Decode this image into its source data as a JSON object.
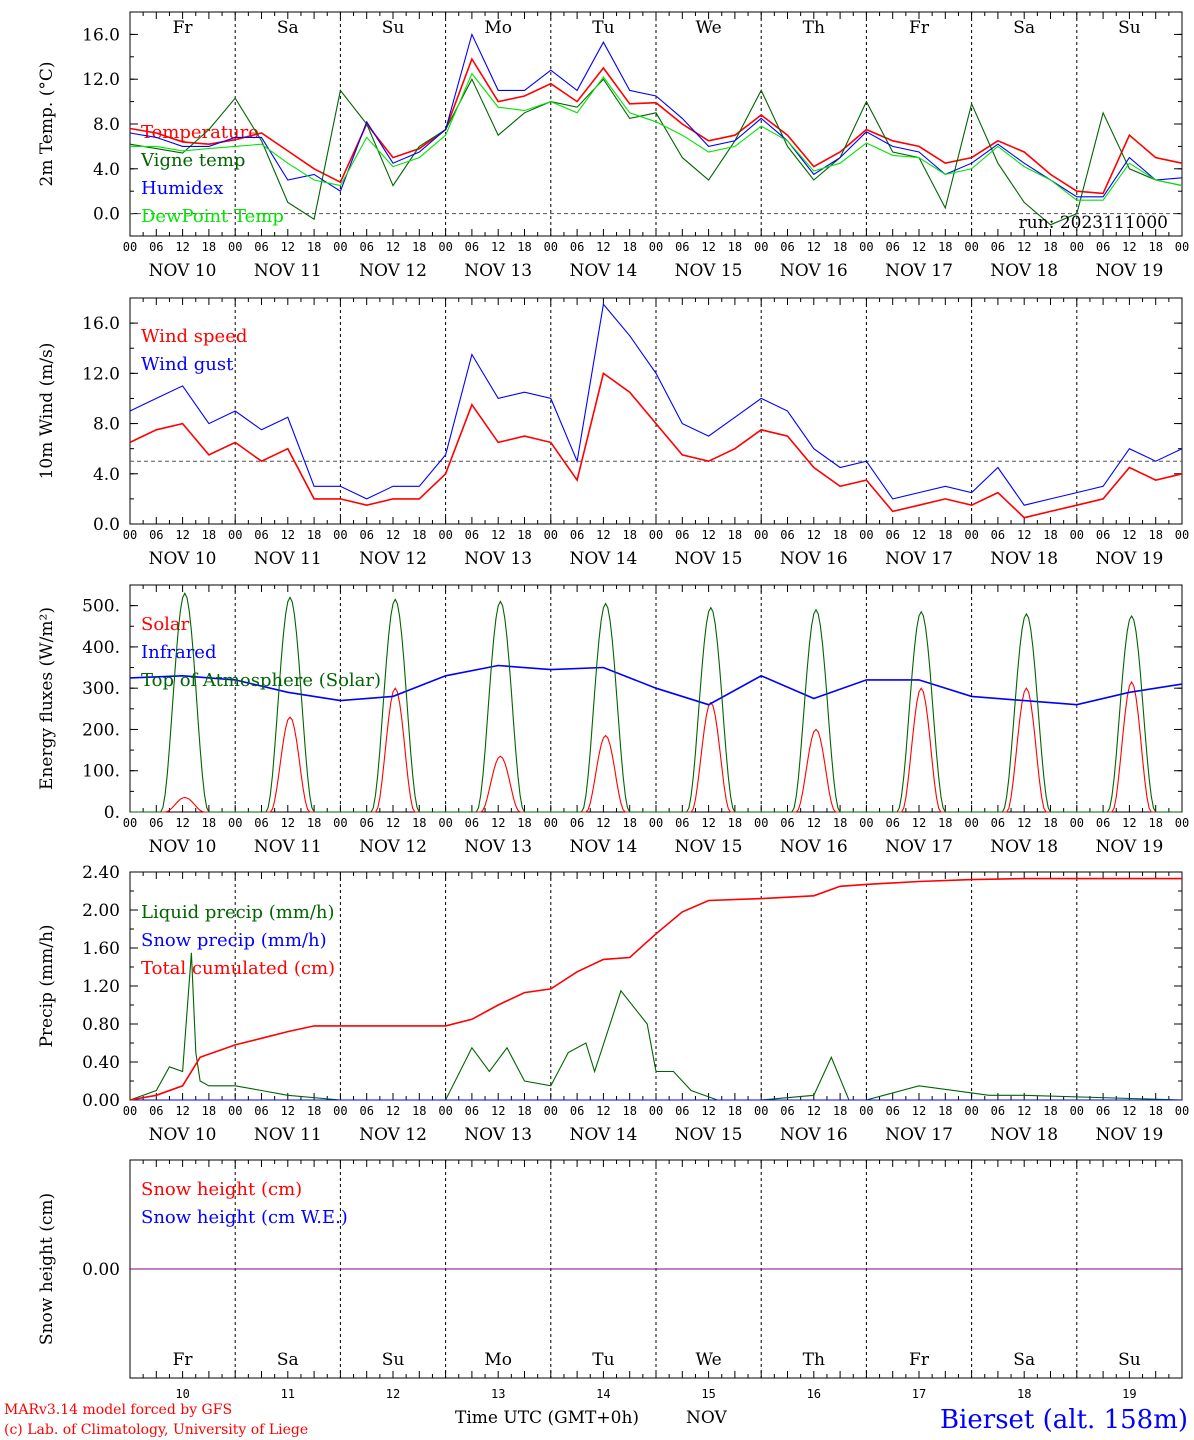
{
  "colors": {
    "red": "#ff0000",
    "green": "#006400",
    "lightgreen": "#00e600",
    "blue": "#0000ff",
    "purple": "#7f007f",
    "weekend": "#ff0000",
    "weekday": "#000000"
  },
  "days": [
    {
      "abbr": "Fr",
      "weekend": false,
      "date": "NOV 10",
      "num": "10"
    },
    {
      "abbr": "Sa",
      "weekend": true,
      "date": "NOV 11",
      "num": "11"
    },
    {
      "abbr": "Su",
      "weekend": true,
      "date": "NOV 12",
      "num": "12"
    },
    {
      "abbr": "Mo",
      "weekend": false,
      "date": "NOV 13",
      "num": "13"
    },
    {
      "abbr": "Tu",
      "weekend": false,
      "date": "NOV 14",
      "num": "14"
    },
    {
      "abbr": "We",
      "weekend": false,
      "date": "NOV 15",
      "num": "15"
    },
    {
      "abbr": "Th",
      "weekend": false,
      "date": "NOV 16",
      "num": "16"
    },
    {
      "abbr": "Fr",
      "weekend": false,
      "date": "NOV 17",
      "num": "17"
    },
    {
      "abbr": "Sa",
      "weekend": true,
      "date": "NOV 18",
      "num": "18"
    },
    {
      "abbr": "Su",
      "weekend": true,
      "date": "NOV 19",
      "num": "19"
    }
  ],
  "hour_ticks": [
    "00",
    "06",
    "12",
    "18"
  ],
  "footer": {
    "model": "MARv3.14 model forced by GFS",
    "lab": "(c) Lab. of Climatology, University of Liege",
    "xlabel": "Time UTC (GMT+0h)",
    "month": "NOV",
    "station": "Bierset (alt. 158m)"
  },
  "chart_data": [
    {
      "type": "line",
      "ylabel": "2m Temp. (°C)",
      "ylim": [
        -2.0,
        18.0
      ],
      "yticks": [
        "0.0",
        "4.0",
        "8.0",
        "12.0",
        "16.0"
      ],
      "yticks_values": [
        0,
        4,
        8,
        12,
        16
      ],
      "annotation": "run: 2023111000",
      "ref_line": 0,
      "x_hours": [
        0,
        6,
        12,
        18,
        24,
        30,
        36,
        42,
        48,
        54,
        60,
        66,
        72,
        78,
        84,
        90,
        96,
        102,
        108,
        114,
        120,
        126,
        132,
        138,
        144,
        150,
        156,
        162,
        168,
        174,
        180,
        186,
        192,
        198,
        204,
        210,
        216,
        222,
        228,
        234,
        240
      ],
      "series": [
        {
          "name": "Temperature",
          "color": "#ff0000",
          "values": [
            7.6,
            7.2,
            6.4,
            6.2,
            6.6,
            7.2,
            5.6,
            4.0,
            2.8,
            8.0,
            5.0,
            5.8,
            7.5,
            13.8,
            10.0,
            10.5,
            11.6,
            10.0,
            13.0,
            9.8,
            9.9,
            8.0,
            6.5,
            7.0,
            8.8,
            7.0,
            4.2,
            5.5,
            7.5,
            6.5,
            6.0,
            4.5,
            5.0,
            6.5,
            5.5,
            3.5,
            2.0,
            1.8,
            7.0,
            5.0,
            4.5
          ]
        },
        {
          "name": "Vigne temp",
          "color": "#006400",
          "values": [
            6.2,
            5.8,
            5.4,
            7.5,
            10.3,
            6.5,
            1.0,
            -0.5,
            11.0,
            8.0,
            2.5,
            6.0,
            7.5,
            12.0,
            7.0,
            9.0,
            10.0,
            9.5,
            12.0,
            8.5,
            9.0,
            5.0,
            3.0,
            6.5,
            11.0,
            6.0,
            3.0,
            5.0,
            10.0,
            5.5,
            5.0,
            0.5,
            9.8,
            4.5,
            1.0,
            -1.0,
            0.0,
            9.0,
            4.0,
            3.0,
            2.5
          ]
        },
        {
          "name": "Humidex",
          "color": "#0000ff",
          "values": [
            7.2,
            6.8,
            6.0,
            6.0,
            6.8,
            6.8,
            3.0,
            3.5,
            2.0,
            8.2,
            4.5,
            5.5,
            7.5,
            16.0,
            11.0,
            11.0,
            12.8,
            11.0,
            15.3,
            11.0,
            10.5,
            8.5,
            6.0,
            6.5,
            8.5,
            6.5,
            3.5,
            5.0,
            7.3,
            6.0,
            5.5,
            3.5,
            4.5,
            6.2,
            4.5,
            3.0,
            1.5,
            1.5,
            5.0,
            3.0,
            3.2
          ]
        },
        {
          "name": "DewPoint Temp",
          "color": "#00e600",
          "values": [
            6.0,
            6.0,
            5.6,
            5.8,
            6.0,
            6.2,
            4.5,
            3.0,
            2.5,
            6.8,
            4.2,
            5.0,
            7.0,
            12.5,
            9.5,
            9.2,
            10.0,
            9.0,
            12.2,
            9.0,
            8.2,
            7.0,
            5.5,
            6.0,
            7.8,
            6.5,
            3.8,
            4.5,
            6.3,
            5.2,
            5.0,
            3.5,
            4.0,
            6.0,
            4.2,
            3.0,
            1.2,
            1.2,
            4.5,
            3.0,
            2.5
          ]
        }
      ]
    },
    {
      "type": "line",
      "ylabel": "10m Wind (m/s)",
      "ylim": [
        0.0,
        18.0
      ],
      "yticks": [
        "0.0",
        "4.0",
        "8.0",
        "12.0",
        "16.0"
      ],
      "yticks_values": [
        0,
        4,
        8,
        12,
        16
      ],
      "ref_line": 5,
      "x_hours": [
        0,
        6,
        12,
        18,
        24,
        30,
        36,
        42,
        48,
        54,
        60,
        66,
        72,
        78,
        84,
        90,
        96,
        102,
        108,
        114,
        120,
        126,
        132,
        138,
        144,
        150,
        156,
        162,
        168,
        174,
        180,
        186,
        192,
        198,
        204,
        210,
        216,
        222,
        228,
        234,
        240
      ],
      "series": [
        {
          "name": "Wind speed",
          "color": "#ff0000",
          "values": [
            6.5,
            7.5,
            8.0,
            5.5,
            6.5,
            5.0,
            6.0,
            2.0,
            2.0,
            1.5,
            2.0,
            2.0,
            4.0,
            9.5,
            6.5,
            7.0,
            6.5,
            3.5,
            12.0,
            10.5,
            8.0,
            5.5,
            5.0,
            6.0,
            7.5,
            7.0,
            4.5,
            3.0,
            3.5,
            1.0,
            1.5,
            2.0,
            1.5,
            2.5,
            0.5,
            1.0,
            1.5,
            2.0,
            4.5,
            3.5,
            4.0
          ]
        },
        {
          "name": "Wind gust",
          "color": "#0000ff",
          "values": [
            9.0,
            10.0,
            11.0,
            8.0,
            9.0,
            7.5,
            8.5,
            3.0,
            3.0,
            2.0,
            3.0,
            3.0,
            5.5,
            13.5,
            10.0,
            10.5,
            10.0,
            5.0,
            17.5,
            15.0,
            12.0,
            8.0,
            7.0,
            8.5,
            10.0,
            9.0,
            6.0,
            4.5,
            5.0,
            2.0,
            2.5,
            3.0,
            2.5,
            4.5,
            1.5,
            2.0,
            2.5,
            3.0,
            6.0,
            5.0,
            6.0
          ]
        }
      ]
    },
    {
      "type": "line",
      "ylabel": "Energy fluxes (W/m²)",
      "ylim": [
        0,
        550
      ],
      "yticks": [
        "0.",
        "100.",
        "200.",
        "300.",
        "400.",
        "500."
      ],
      "yticks_values": [
        0,
        100,
        200,
        300,
        400,
        500
      ],
      "series": [
        {
          "name": "Solar",
          "color": "#ff0000",
          "peaks": [
            35,
            230,
            300,
            135,
            185,
            265,
            200,
            300,
            300,
            315
          ]
        },
        {
          "name": "Infrared",
          "color": "#0000ff",
          "x_hours": [
            0,
            12,
            24,
            36,
            48,
            60,
            72,
            84,
            96,
            108,
            120,
            132,
            144,
            156,
            168,
            180,
            192,
            204,
            216,
            228,
            240
          ],
          "values": [
            325,
            330,
            320,
            290,
            270,
            280,
            330,
            355,
            345,
            350,
            300,
            260,
            330,
            275,
            320,
            320,
            280,
            270,
            260,
            290,
            310
          ]
        },
        {
          "name": "Top of Atmosphere (Solar)",
          "color": "#006400",
          "peaks": [
            530,
            520,
            515,
            510,
            505,
            495,
            490,
            485,
            480,
            475
          ]
        }
      ]
    },
    {
      "type": "line",
      "ylabel": "Precip (mm/h)",
      "ylim": [
        0.0,
        2.4
      ],
      "yticks": [
        "0.00",
        "0.40",
        "0.80",
        "1.20",
        "1.60",
        "2.00",
        "2.40"
      ],
      "yticks_values": [
        0,
        0.4,
        0.8,
        1.2,
        1.6,
        2.0,
        2.4
      ],
      "series": [
        {
          "name": "Liquid precip (mm/h)",
          "color": "#006400",
          "x_hours": [
            0,
            6,
            9,
            12,
            14,
            15,
            16,
            18,
            24,
            30,
            36,
            48,
            72,
            78,
            82,
            86,
            90,
            96,
            100,
            104,
            106,
            112,
            118,
            120,
            124,
            128,
            134,
            144,
            156,
            160,
            164,
            168,
            180,
            196,
            204,
            240
          ],
          "values": [
            0,
            0.1,
            0.35,
            0.3,
            1.55,
            0.5,
            0.2,
            0.15,
            0.15,
            0.1,
            0.05,
            0,
            0,
            0.55,
            0.3,
            0.55,
            0.2,
            0.15,
            0.5,
            0.6,
            0.3,
            1.15,
            0.8,
            0.3,
            0.3,
            0.1,
            0,
            0,
            0.05,
            0.45,
            0,
            0,
            0.15,
            0.05,
            0.05,
            0
          ]
        },
        {
          "name": "Snow precip (mm/h)",
          "color": "#0000ff",
          "values": [
            0,
            0
          ]
        },
        {
          "name": "Total cumulated (cm)",
          "color": "#ff0000",
          "x_hours": [
            0,
            6,
            12,
            16,
            24,
            30,
            36,
            42,
            48,
            60,
            72,
            78,
            84,
            90,
            96,
            102,
            108,
            114,
            120,
            126,
            132,
            144,
            156,
            162,
            168,
            180,
            192,
            204,
            216,
            240
          ],
          "values": [
            0,
            0.05,
            0.15,
            0.45,
            0.58,
            0.65,
            0.72,
            0.78,
            0.78,
            0.78,
            0.78,
            0.85,
            1.0,
            1.13,
            1.17,
            1.35,
            1.48,
            1.5,
            1.75,
            1.98,
            2.1,
            2.12,
            2.15,
            2.25,
            2.27,
            2.3,
            2.32,
            2.33,
            2.33,
            2.33
          ]
        }
      ]
    },
    {
      "type": "line",
      "ylabel": "Snow height (cm)",
      "ylim": [
        -1,
        1
      ],
      "yticks": [
        "0.00"
      ],
      "yticks_values": [
        0
      ],
      "series": [
        {
          "name": "Snow height (cm)",
          "color": "#ff0000",
          "values": [
            0,
            0
          ]
        },
        {
          "name": "Snow height (cm W.E.)",
          "color": "#0000ff",
          "values": [
            0,
            0
          ]
        }
      ]
    }
  ]
}
